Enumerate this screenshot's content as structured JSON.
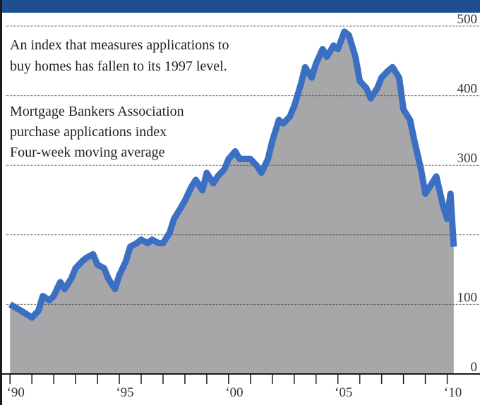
{
  "chart_data": {
    "type": "area-line",
    "annotations": [
      "An index that measures applications to",
      "buy homes has fallen to its 1997 level.",
      "Mortgage Bankers Association",
      "purchase applications index",
      "Four-week moving average"
    ],
    "x": [
      1990.0,
      1990.5,
      1991.0,
      1991.3,
      1991.5,
      1991.8,
      1992.0,
      1992.3,
      1992.5,
      1992.8,
      1993.0,
      1993.3,
      1993.5,
      1993.8,
      1994.0,
      1994.3,
      1994.5,
      1994.8,
      1995.0,
      1995.3,
      1995.5,
      1995.8,
      1996.0,
      1996.3,
      1996.5,
      1996.8,
      1997.0,
      1997.3,
      1997.5,
      1997.8,
      1998.0,
      1998.3,
      1998.5,
      1998.8,
      1999.0,
      1999.3,
      1999.5,
      1999.8,
      2000.0,
      2000.3,
      2000.5,
      2000.8,
      2001.0,
      2001.3,
      2001.5,
      2001.8,
      2002.0,
      2002.3,
      2002.5,
      2002.8,
      2003.0,
      2003.3,
      2003.5,
      2003.8,
      2004.0,
      2004.3,
      2004.5,
      2004.8,
      2005.0,
      2005.3,
      2005.5,
      2005.8,
      2006.0,
      2006.3,
      2006.5,
      2006.8,
      2007.0,
      2007.3,
      2007.5,
      2007.8,
      2008.0,
      2008.3,
      2008.5,
      2008.8,
      2009.0,
      2009.3,
      2009.5,
      2009.8,
      2010.0,
      2010.15,
      2010.3
    ],
    "series": [
      {
        "color": "#3a6fc4",
        "fill": "#a7a7a9",
        "values": [
          100,
          91,
          81,
          91,
          112,
          106,
          112,
          132,
          122,
          137,
          152,
          162,
          167,
          172,
          157,
          152,
          137,
          122,
          142,
          162,
          183,
          188,
          193,
          188,
          193,
          188,
          188,
          203,
          223,
          238,
          249,
          269,
          279,
          264,
          289,
          274,
          284,
          294,
          309,
          320,
          309,
          309,
          309,
          299,
          289,
          309,
          335,
          365,
          360,
          370,
          385,
          416,
          441,
          426,
          446,
          467,
          456,
          472,
          467,
          492,
          487,
          456,
          421,
          411,
          396,
          411,
          426,
          436,
          441,
          426,
          380,
          365,
          335,
          294,
          259,
          274,
          284,
          243,
          223,
          259,
          183
        ]
      }
    ],
    "xlim": [
      1989.8,
      2011.5
    ],
    "ylim": [
      0,
      500
    ],
    "xticks": [
      {
        "value": 1990,
        "label": "‘90"
      },
      {
        "value": 1995,
        "label": "‘95"
      },
      {
        "value": 2000,
        "label": "‘00"
      },
      {
        "value": 2005,
        "label": "‘05"
      },
      {
        "value": 2010,
        "label": "‘10"
      }
    ],
    "xminorticks": [
      1991,
      1992,
      1993,
      1994,
      1996,
      1997,
      1998,
      1999,
      2001,
      2002,
      2003,
      2004,
      2006,
      2007,
      2008,
      2009
    ],
    "yticks": [
      0,
      100,
      300,
      400,
      500
    ],
    "ygrid": [
      100,
      200,
      300,
      400,
      500
    ]
  }
}
